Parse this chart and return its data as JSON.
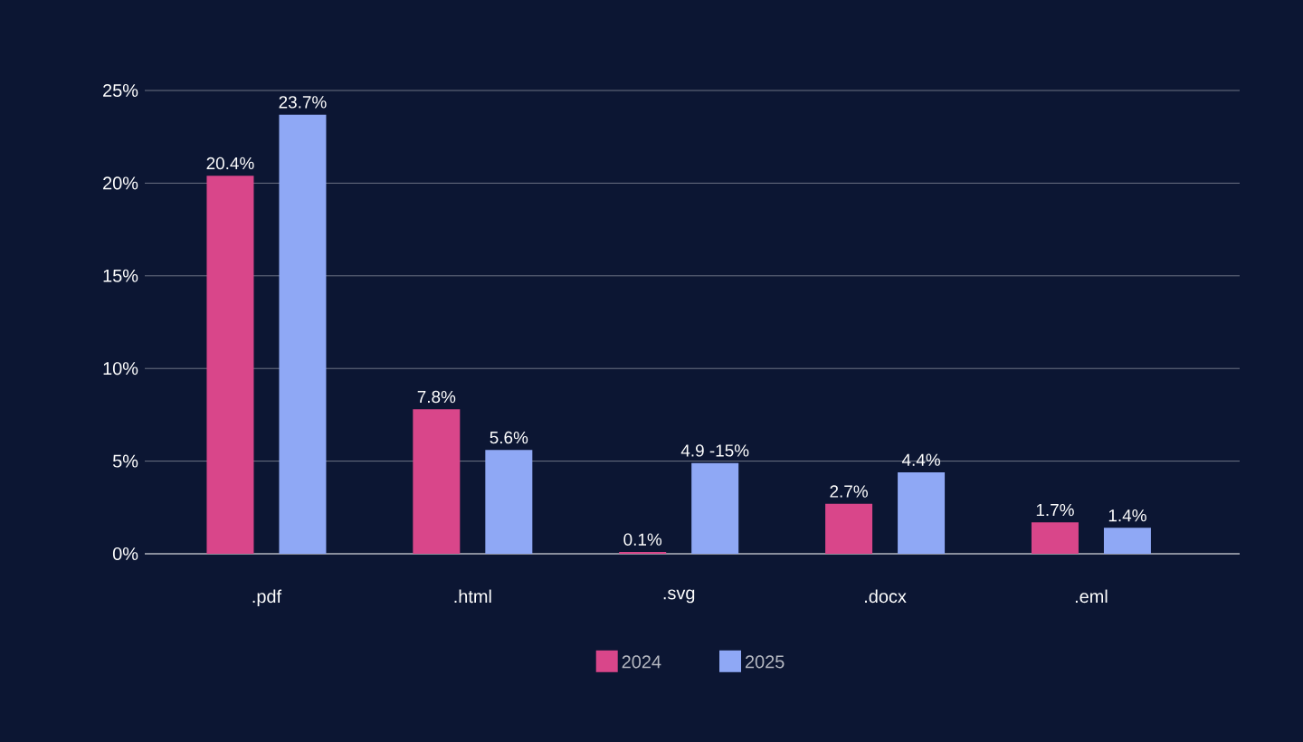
{
  "chart_data": {
    "type": "bar",
    "categories": [
      ".pdf",
      ".html",
      ".svg",
      ".docx",
      ".eml"
    ],
    "series": [
      {
        "name": "2024",
        "color": "#d9468a",
        "values": [
          20.4,
          7.8,
          0.1,
          2.7,
          1.7
        ],
        "value_labels": [
          "20.4%",
          "7.8%",
          "0.1%",
          "2.7%",
          "1.7%"
        ]
      },
      {
        "name": "2025",
        "color": "#8fa8f5",
        "values": [
          23.7,
          5.6,
          4.9,
          4.4,
          1.4
        ],
        "value_labels": [
          "23.7%",
          "5.6%",
          "4.9 -15%",
          "4.4%",
          "1.4%"
        ]
      }
    ],
    "ylim": [
      0,
      25
    ],
    "yticks": [
      {
        "value": 0,
        "label": "0%"
      },
      {
        "value": 5,
        "label": "5%"
      },
      {
        "value": 10,
        "label": "10%"
      },
      {
        "value": 15,
        "label": "15%"
      },
      {
        "value": 20,
        "label": "20%"
      },
      {
        "value": 25,
        "label": "25%"
      }
    ],
    "grid": "y",
    "legend": "bottom"
  }
}
